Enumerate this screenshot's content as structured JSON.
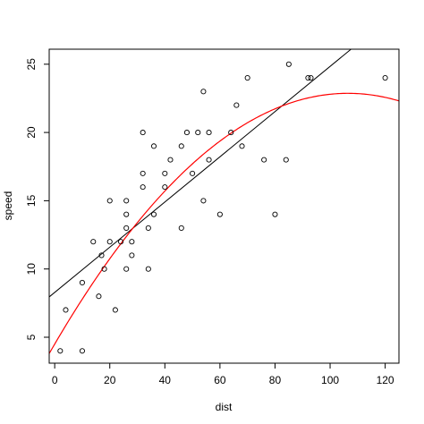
{
  "chart_data": {
    "type": "scatter",
    "title": "",
    "xlabel": "dist",
    "ylabel": "speed",
    "xlim": [
      -2,
      125
    ],
    "ylim": [
      3.1,
      26.1
    ],
    "x_ticks": [
      0,
      20,
      40,
      60,
      80,
      100,
      120
    ],
    "y_ticks": [
      5,
      10,
      15,
      20,
      25
    ],
    "grid": false,
    "points": [
      [
        2,
        4
      ],
      [
        10,
        4
      ],
      [
        4,
        7
      ],
      [
        22,
        7
      ],
      [
        16,
        8
      ],
      [
        10,
        9
      ],
      [
        18,
        10
      ],
      [
        26,
        10
      ],
      [
        34,
        10
      ],
      [
        17,
        11
      ],
      [
        28,
        11
      ],
      [
        14,
        12
      ],
      [
        20,
        12
      ],
      [
        24,
        12
      ],
      [
        28,
        12
      ],
      [
        26,
        13
      ],
      [
        34,
        13
      ],
      [
        46,
        13
      ],
      [
        26,
        14
      ],
      [
        36,
        14
      ],
      [
        60,
        14
      ],
      [
        80,
        14
      ],
      [
        20,
        15
      ],
      [
        26,
        15
      ],
      [
        54,
        15
      ],
      [
        32,
        16
      ],
      [
        40,
        16
      ],
      [
        32,
        17
      ],
      [
        40,
        17
      ],
      [
        50,
        17
      ],
      [
        42,
        18
      ],
      [
        56,
        18
      ],
      [
        76,
        18
      ],
      [
        84,
        18
      ],
      [
        36,
        19
      ],
      [
        46,
        19
      ],
      [
        68,
        19
      ],
      [
        32,
        20
      ],
      [
        48,
        20
      ],
      [
        52,
        20
      ],
      [
        56,
        20
      ],
      [
        64,
        20
      ],
      [
        66,
        22
      ],
      [
        54,
        23
      ],
      [
        70,
        24
      ],
      [
        92,
        24
      ],
      [
        93,
        24
      ],
      [
        120,
        24
      ],
      [
        85,
        25
      ]
    ],
    "series": [
      {
        "type": "line",
        "color": "#000000",
        "intercept": 8.28391,
        "slope": 0.16557
      },
      {
        "type": "curve",
        "color": "#ff0000",
        "coefficients": [
          4.5,
          0.345,
          -0.00162
        ]
      }
    ],
    "point_color": "#000000",
    "point_style": "open-circle"
  }
}
